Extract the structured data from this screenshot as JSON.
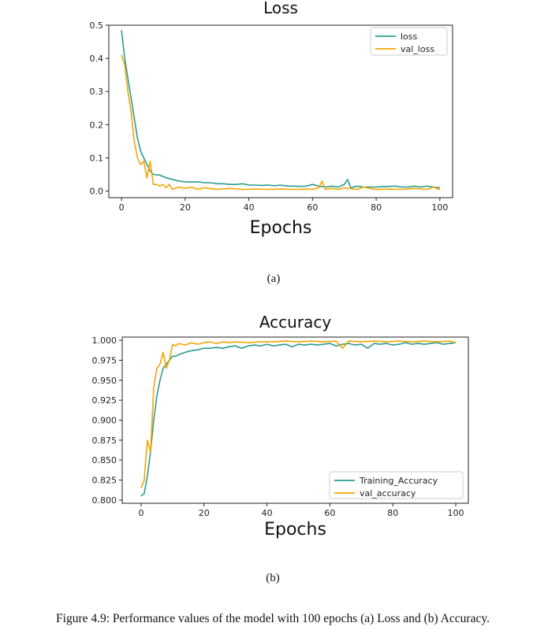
{
  "chart_data": [
    {
      "type": "line",
      "title": "Loss",
      "xlabel": "Epochs",
      "ylabel": "",
      "xlim": [
        -4,
        104
      ],
      "ylim": [
        -0.02,
        0.5
      ],
      "xticks": [
        0,
        20,
        40,
        60,
        80,
        100
      ],
      "yticks": [
        0.0,
        0.1,
        0.2,
        0.3,
        0.4,
        0.5
      ],
      "ytick_labels": [
        "0.0",
        "0.1",
        "0.2",
        "0.3",
        "0.4",
        "0.5"
      ],
      "grid": false,
      "legend": "top-right",
      "series": [
        {
          "name": "loss",
          "color": "#2a9d8f",
          "x": [
            0,
            1,
            2,
            3,
            4,
            5,
            6,
            7,
            8,
            9,
            10,
            12,
            14,
            16,
            18,
            20,
            22,
            24,
            26,
            28,
            30,
            32,
            34,
            36,
            38,
            40,
            42,
            44,
            46,
            48,
            50,
            52,
            54,
            56,
            58,
            60,
            62,
            64,
            66,
            68,
            70,
            71,
            72,
            74,
            76,
            78,
            80,
            82,
            84,
            86,
            88,
            90,
            92,
            94,
            96,
            98,
            100
          ],
          "y": [
            0.485,
            0.4,
            0.34,
            0.28,
            0.22,
            0.16,
            0.12,
            0.1,
            0.08,
            0.06,
            0.05,
            0.048,
            0.04,
            0.035,
            0.03,
            0.028,
            0.027,
            0.028,
            0.025,
            0.025,
            0.022,
            0.022,
            0.02,
            0.02,
            0.022,
            0.018,
            0.018,
            0.017,
            0.018,
            0.016,
            0.018,
            0.015,
            0.015,
            0.014,
            0.015,
            0.02,
            0.015,
            0.012,
            0.015,
            0.012,
            0.02,
            0.035,
            0.01,
            0.015,
            0.012,
            0.012,
            0.012,
            0.013,
            0.014,
            0.015,
            0.012,
            0.012,
            0.015,
            0.012,
            0.015,
            0.012,
            0.01
          ]
        },
        {
          "name": "val_loss",
          "color": "#f5a500",
          "x": [
            0,
            1,
            2,
            3,
            4,
            5,
            6,
            7,
            8,
            9,
            10,
            11,
            12,
            13,
            14,
            15,
            16,
            18,
            20,
            22,
            24,
            26,
            28,
            30,
            34,
            38,
            42,
            46,
            50,
            54,
            58,
            60,
            62,
            63,
            64,
            66,
            68,
            70,
            72,
            74,
            76,
            78,
            80,
            84,
            88,
            92,
            96,
            98,
            100
          ],
          "y": [
            0.41,
            0.38,
            0.3,
            0.24,
            0.15,
            0.1,
            0.08,
            0.09,
            0.04,
            0.09,
            0.02,
            0.02,
            0.015,
            0.02,
            0.01,
            0.02,
            0.005,
            0.012,
            0.008,
            0.012,
            0.005,
            0.01,
            0.007,
            0.005,
            0.008,
            0.005,
            0.006,
            0.005,
            0.006,
            0.005,
            0.006,
            0.005,
            0.01,
            0.03,
            0.005,
            0.008,
            0.005,
            0.01,
            0.007,
            0.005,
            0.012,
            0.008,
            0.005,
            0.006,
            0.005,
            0.008,
            0.005,
            0.012,
            0.004
          ]
        }
      ]
    },
    {
      "type": "line",
      "title": "Accuracy",
      "xlabel": "Epochs",
      "ylabel": "",
      "xlim": [
        -6,
        104
      ],
      "ylim": [
        0.796,
        1.004
      ],
      "xticks": [
        0,
        20,
        40,
        60,
        80,
        100
      ],
      "yticks": [
        0.8,
        0.825,
        0.85,
        0.875,
        0.9,
        0.925,
        0.95,
        0.975,
        1.0
      ],
      "ytick_labels": [
        "0.800",
        "0.825",
        "0.850",
        "0.875",
        "0.900",
        "0.925",
        "0.950",
        "0.975",
        "1.000"
      ],
      "grid": false,
      "legend": "bottom-right",
      "series": [
        {
          "name": "Training_Accuracy",
          "color": "#2a9d8f",
          "x": [
            0,
            1,
            2,
            3,
            4,
            5,
            6,
            7,
            8,
            9,
            10,
            11,
            12,
            14,
            16,
            18,
            20,
            22,
            24,
            26,
            28,
            30,
            32,
            34,
            36,
            38,
            40,
            42,
            44,
            46,
            48,
            50,
            52,
            54,
            56,
            58,
            60,
            62,
            64,
            66,
            68,
            70,
            72,
            74,
            76,
            78,
            80,
            82,
            84,
            86,
            88,
            90,
            92,
            94,
            96,
            98,
            100
          ],
          "y": [
            0.805,
            0.808,
            0.83,
            0.86,
            0.9,
            0.93,
            0.95,
            0.965,
            0.97,
            0.975,
            0.98,
            0.98,
            0.982,
            0.985,
            0.987,
            0.988,
            0.99,
            0.99,
            0.991,
            0.99,
            0.992,
            0.993,
            0.99,
            0.993,
            0.994,
            0.993,
            0.995,
            0.993,
            0.994,
            0.995,
            0.992,
            0.995,
            0.994,
            0.995,
            0.994,
            0.995,
            0.996,
            0.993,
            0.995,
            0.996,
            0.994,
            0.995,
            0.99,
            0.996,
            0.995,
            0.996,
            0.994,
            0.995,
            0.997,
            0.995,
            0.996,
            0.995,
            0.996,
            0.997,
            0.995,
            0.996,
            0.997
          ]
        },
        {
          "name": "val_accuracy",
          "color": "#f5a500",
          "x": [
            0,
            1,
            2,
            3,
            4,
            5,
            6,
            7,
            8,
            9,
            10,
            11,
            12,
            14,
            16,
            18,
            20,
            22,
            24,
            26,
            28,
            30,
            34,
            38,
            42,
            46,
            50,
            54,
            58,
            62,
            64,
            66,
            70,
            74,
            78,
            82,
            86,
            90,
            94,
            98,
            100
          ],
          "y": [
            0.815,
            0.825,
            0.875,
            0.86,
            0.94,
            0.965,
            0.97,
            0.985,
            0.965,
            0.975,
            0.995,
            0.993,
            0.996,
            0.994,
            0.997,
            0.995,
            0.997,
            0.998,
            0.996,
            0.998,
            0.997,
            0.998,
            0.997,
            0.998,
            0.998,
            0.999,
            0.998,
            0.999,
            0.998,
            0.999,
            0.99,
            0.999,
            0.998,
            0.999,
            0.998,
            0.999,
            0.998,
            0.999,
            0.998,
            0.999,
            0.997
          ]
        }
      ]
    }
  ],
  "labels": {
    "sub_a": "(a)",
    "sub_b": "(b)",
    "caption": "Figure 4.9: Performance values of the model with 100 epochs (a) Loss and (b) Accuracy."
  }
}
